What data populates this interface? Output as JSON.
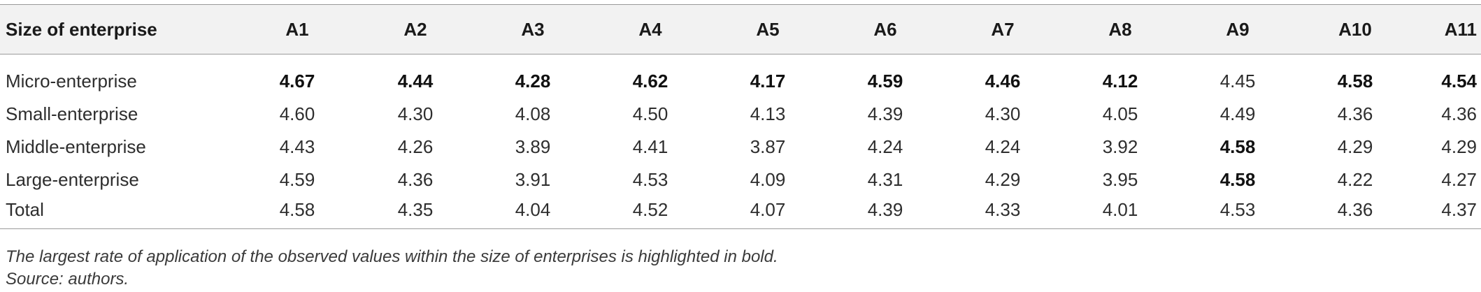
{
  "table": {
    "header": {
      "first": "Size of enterprise",
      "columns": [
        "A1",
        "A2",
        "A3",
        "A4",
        "A5",
        "A6",
        "A7",
        "A8",
        "A9",
        "A10",
        "A11"
      ]
    },
    "rows": [
      {
        "label": "Micro-enterprise",
        "values": [
          "4.67",
          "4.44",
          "4.28",
          "4.62",
          "4.17",
          "4.59",
          "4.46",
          "4.12",
          "4.45",
          "4.58",
          "4.54"
        ],
        "bold": [
          true,
          true,
          true,
          true,
          true,
          true,
          true,
          true,
          false,
          true,
          true
        ]
      },
      {
        "label": "Small-enterprise",
        "values": [
          "4.60",
          "4.30",
          "4.08",
          "4.50",
          "4.13",
          "4.39",
          "4.30",
          "4.05",
          "4.49",
          "4.36",
          "4.36"
        ],
        "bold": [
          false,
          false,
          false,
          false,
          false,
          false,
          false,
          false,
          false,
          false,
          false
        ]
      },
      {
        "label": "Middle-enterprise",
        "values": [
          "4.43",
          "4.26",
          "3.89",
          "4.41",
          "3.87",
          "4.24",
          "4.24",
          "3.92",
          "4.58",
          "4.29",
          "4.29"
        ],
        "bold": [
          false,
          false,
          false,
          false,
          false,
          false,
          false,
          false,
          true,
          false,
          false
        ]
      },
      {
        "label": "Large-enterprise",
        "values": [
          "4.59",
          "4.36",
          "3.91",
          "4.53",
          "4.09",
          "4.31",
          "4.29",
          "3.95",
          "4.58",
          "4.22",
          "4.27"
        ],
        "bold": [
          false,
          false,
          false,
          false,
          false,
          false,
          false,
          false,
          true,
          false,
          false
        ]
      },
      {
        "label": "Total",
        "values": [
          "4.58",
          "4.35",
          "4.04",
          "4.52",
          "4.07",
          "4.39",
          "4.33",
          "4.01",
          "4.53",
          "4.36",
          "4.37"
        ],
        "bold": [
          false,
          false,
          false,
          false,
          false,
          false,
          false,
          false,
          false,
          false,
          false
        ]
      }
    ]
  },
  "notes": {
    "footnote": "The largest rate of application of the observed values within the size of enterprises is highlighted in bold.",
    "source": "Source: authors."
  }
}
